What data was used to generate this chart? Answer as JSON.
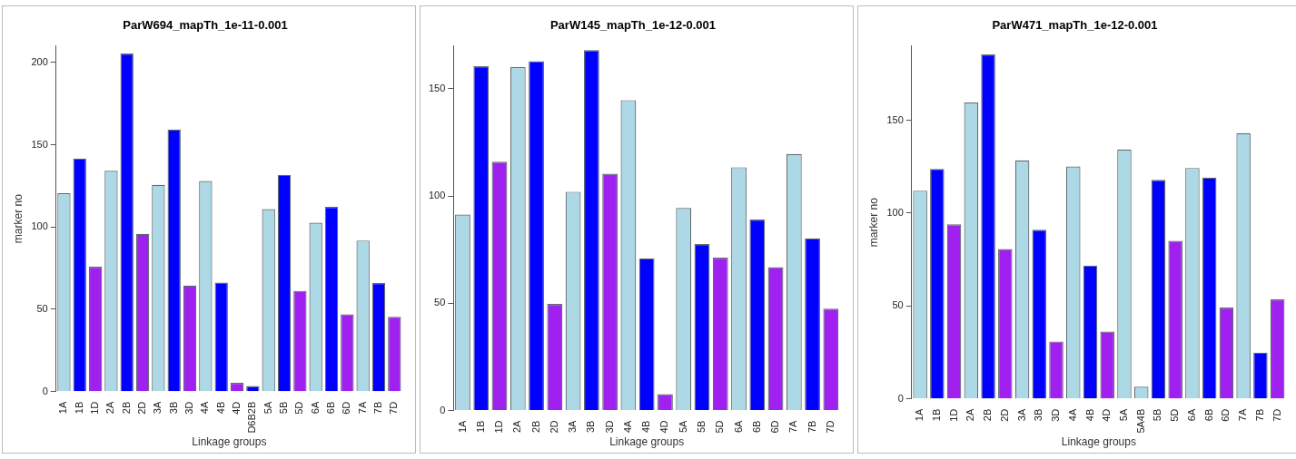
{
  "chart_data": [
    {
      "type": "bar",
      "title": "ParW694_mapTh_1e-11-0.001",
      "xlabel": "Linkage groups",
      "ylabel": "marker no",
      "categories": [
        "1A",
        "1B",
        "1D",
        "2A",
        "2B",
        "2D",
        "3A",
        "3B",
        "3D",
        "4A",
        "4B",
        "4D",
        "D6B2B",
        "5A",
        "5B",
        "5D",
        "6A",
        "6B",
        "6D",
        "7A",
        "7B",
        "7D"
      ],
      "values": [
        120.5,
        141.6,
        75.9,
        134.2,
        205.4,
        95.9,
        125.6,
        159.2,
        64.5,
        127.9,
        66.3,
        5.4,
        3.4,
        110.9,
        131.7,
        61.2,
        102.6,
        112.2,
        47,
        91.8,
        66,
        45.5
      ],
      "colors": [
        "#add8e6",
        "#0000ff",
        "#a020f0",
        "#add8e6",
        "#0000ff",
        "#a020f0",
        "#add8e6",
        "#0000ff",
        "#a020f0",
        "#add8e6",
        "#0000ff",
        "#a020f0",
        "#0000ff",
        "#add8e6",
        "#0000ff",
        "#a020f0",
        "#add8e6",
        "#0000ff",
        "#a020f0",
        "#add8e6",
        "#0000ff",
        "#a020f0"
      ],
      "ylim": [
        0,
        210
      ],
      "yticks": [
        0,
        50,
        100,
        150,
        200
      ]
    },
    {
      "type": "bar",
      "title": "ParW145_mapTh_1e-12-0.001",
      "xlabel": "Linkage groups",
      "categories": [
        "1A",
        "1B",
        "1D",
        "2A",
        "2B",
        "2D",
        "3A",
        "3B",
        "3D",
        "4A",
        "4B",
        "4D",
        "5A",
        "5B",
        "5D",
        "6A",
        "6B",
        "6D",
        "7A",
        "7B",
        "7D"
      ],
      "values": [
        91.4,
        160.5,
        116,
        160.1,
        162.9,
        49.7,
        102,
        168,
        110.4,
        144.7,
        70.9,
        7.6,
        94.4,
        77.6,
        71.3,
        113.4,
        89,
        66.8,
        119.6,
        80.3,
        47.5
      ],
      "colors": [
        "#add8e6",
        "#0000ff",
        "#a020f0",
        "#add8e6",
        "#0000ff",
        "#a020f0",
        "#add8e6",
        "#0000ff",
        "#a020f0",
        "#add8e6",
        "#0000ff",
        "#a020f0",
        "#add8e6",
        "#0000ff",
        "#a020f0",
        "#add8e6",
        "#0000ff",
        "#a020f0",
        "#add8e6",
        "#0000ff",
        "#a020f0"
      ],
      "ylim": [
        0,
        170
      ],
      "yticks": [
        0,
        50,
        100,
        150
      ]
    },
    {
      "type": "bar",
      "title": "ParW471_mapTh_1e-12-0.001",
      "xlabel": "Linkage groups",
      "ylabel": "marker no",
      "categories": [
        "1A",
        "1B",
        "1D",
        "2A",
        "2B",
        "2D",
        "3A",
        "3B",
        "3D",
        "4A",
        "4B",
        "4D",
        "5A",
        "5A4B",
        "5B",
        "5D",
        "6A",
        "6B",
        "6D",
        "7A",
        "7B",
        "7D"
      ],
      "values": [
        112.1,
        123.8,
        94,
        159.5,
        185.4,
        80.7,
        128.4,
        91,
        30.9,
        125.1,
        71.8,
        36.2,
        134.2,
        6.6,
        117.9,
        85,
        124.3,
        119.1,
        49.2,
        143,
        24.9,
        53.6
      ],
      "colors": [
        "#add8e6",
        "#0000ff",
        "#a020f0",
        "#add8e6",
        "#0000ff",
        "#a020f0",
        "#add8e6",
        "#0000ff",
        "#a020f0",
        "#add8e6",
        "#0000ff",
        "#a020f0",
        "#add8e6",
        "#add8e6",
        "#0000ff",
        "#a020f0",
        "#add8e6",
        "#0000ff",
        "#a020f0",
        "#add8e6",
        "#0000ff",
        "#a020f0"
      ],
      "ylim": [
        0,
        190
      ],
      "yticks": [
        0,
        50,
        100,
        150
      ]
    }
  ]
}
